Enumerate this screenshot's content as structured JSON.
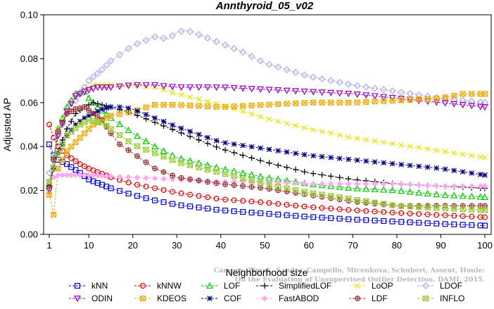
{
  "chart_data": {
    "type": "line",
    "title": "Annthyroid_05_v02",
    "xlabel": "Neighborhood size",
    "ylabel": "Adjusted AP",
    "xlim": [
      1,
      100
    ],
    "ylim": [
      0,
      0.1
    ],
    "x_ticks": [
      1,
      10,
      20,
      30,
      40,
      50,
      60,
      70,
      80,
      90,
      100
    ],
    "y_ticks": [
      0.0,
      0.02,
      0.04,
      0.06,
      0.08,
      0.1
    ],
    "y_tick_labels": [
      "0.00",
      "0.02",
      "0.04",
      "0.06",
      "0.08",
      "0.10"
    ],
    "grid": false,
    "legend_position": "bottom",
    "watermark": [
      "Campos, Zimek, Sander, Campello, Micenkova, Schubert, Assent, Houle:",
      "On the Evaluation of Unsupervised Outlier Detection. DAMI, 2015."
    ],
    "series": [
      {
        "name": "kNN",
        "color": "#0000dd",
        "marker": "square",
        "points": [
          [
            1,
            0.041
          ],
          [
            2,
            0.036
          ],
          [
            3,
            0.034
          ],
          [
            5,
            0.032
          ],
          [
            8,
            0.028
          ],
          [
            10,
            0.025
          ],
          [
            15,
            0.021
          ],
          [
            20,
            0.018
          ],
          [
            25,
            0.0155
          ],
          [
            30,
            0.0135
          ],
          [
            40,
            0.011
          ],
          [
            50,
            0.0095
          ],
          [
            60,
            0.008
          ],
          [
            70,
            0.0068
          ],
          [
            80,
            0.0058
          ],
          [
            90,
            0.0048
          ],
          [
            100,
            0.004
          ]
        ]
      },
      {
        "name": "kNNW",
        "color": "#dd0000",
        "marker": "circle",
        "points": [
          [
            1,
            0.05
          ],
          [
            2,
            0.044
          ],
          [
            3,
            0.04
          ],
          [
            5,
            0.036
          ],
          [
            8,
            0.032
          ],
          [
            10,
            0.03
          ],
          [
            15,
            0.026
          ],
          [
            20,
            0.023
          ],
          [
            25,
            0.021
          ],
          [
            30,
            0.019
          ],
          [
            40,
            0.016
          ],
          [
            50,
            0.0145
          ],
          [
            60,
            0.0125
          ],
          [
            70,
            0.011
          ],
          [
            80,
            0.0098
          ],
          [
            90,
            0.0088
          ],
          [
            100,
            0.0078
          ]
        ]
      },
      {
        "name": "LOF",
        "color": "#00cc00",
        "marker": "triangle-up",
        "points": [
          [
            1,
            0.023
          ],
          [
            2,
            0.035
          ],
          [
            3,
            0.048
          ],
          [
            5,
            0.058
          ],
          [
            7,
            0.064
          ],
          [
            9,
            0.065
          ],
          [
            10,
            0.062
          ],
          [
            12,
            0.058
          ],
          [
            15,
            0.053
          ],
          [
            20,
            0.046
          ],
          [
            25,
            0.04
          ],
          [
            30,
            0.035
          ],
          [
            40,
            0.03
          ],
          [
            50,
            0.026
          ],
          [
            60,
            0.023
          ],
          [
            70,
            0.021
          ],
          [
            80,
            0.02
          ],
          [
            90,
            0.018
          ],
          [
            100,
            0.017
          ]
        ]
      },
      {
        "name": "SimplifiedLOF",
        "color": "#000000",
        "marker": "plus",
        "points": [
          [
            1,
            0.022
          ],
          [
            2,
            0.03
          ],
          [
            3,
            0.038
          ],
          [
            5,
            0.048
          ],
          [
            7,
            0.055
          ],
          [
            9,
            0.058
          ],
          [
            11,
            0.06
          ],
          [
            13,
            0.059
          ],
          [
            15,
            0.058
          ],
          [
            20,
            0.055
          ],
          [
            25,
            0.051
          ],
          [
            30,
            0.047
          ],
          [
            40,
            0.039
          ],
          [
            50,
            0.033
          ],
          [
            60,
            0.028
          ],
          [
            70,
            0.025
          ],
          [
            80,
            0.023
          ],
          [
            90,
            0.022
          ],
          [
            100,
            0.021
          ]
        ]
      },
      {
        "name": "LoOP",
        "color": "#e6e600",
        "marker": "cross",
        "points": [
          [
            1,
            0.022
          ],
          [
            2,
            0.035
          ],
          [
            3,
            0.048
          ],
          [
            5,
            0.056
          ],
          [
            7,
            0.062
          ],
          [
            9,
            0.066
          ],
          [
            11,
            0.068
          ],
          [
            15,
            0.068
          ],
          [
            20,
            0.068
          ],
          [
            25,
            0.067
          ],
          [
            30,
            0.064
          ],
          [
            40,
            0.059
          ],
          [
            50,
            0.053
          ],
          [
            60,
            0.048
          ],
          [
            70,
            0.044
          ],
          [
            80,
            0.041
          ],
          [
            90,
            0.038
          ],
          [
            100,
            0.035
          ]
        ]
      },
      {
        "name": "LDOF",
        "color": "#aaaaee",
        "marker": "diamond",
        "points": [
          [
            1,
            0.028
          ],
          [
            2,
            0.036
          ],
          [
            3,
            0.045
          ],
          [
            5,
            0.055
          ],
          [
            8,
            0.064
          ],
          [
            10,
            0.07
          ],
          [
            13,
            0.075
          ],
          [
            15,
            0.079
          ],
          [
            20,
            0.086
          ],
          [
            25,
            0.09
          ],
          [
            28,
            0.089
          ],
          [
            30,
            0.092
          ],
          [
            32,
            0.093
          ],
          [
            35,
            0.091
          ],
          [
            40,
            0.087
          ],
          [
            45,
            0.083
          ],
          [
            50,
            0.078
          ],
          [
            55,
            0.075
          ],
          [
            60,
            0.072
          ],
          [
            65,
            0.07
          ],
          [
            70,
            0.068
          ],
          [
            80,
            0.065
          ],
          [
            90,
            0.062
          ],
          [
            100,
            0.06
          ]
        ]
      },
      {
        "name": "ODIN",
        "color": "#9900cc",
        "marker": "triangle-down",
        "points": [
          [
            1,
            0.02
          ],
          [
            2,
            0.03
          ],
          [
            3,
            0.045
          ],
          [
            5,
            0.056
          ],
          [
            7,
            0.063
          ],
          [
            9,
            0.065
          ],
          [
            12,
            0.067
          ],
          [
            15,
            0.067
          ],
          [
            20,
            0.068
          ],
          [
            25,
            0.068
          ],
          [
            30,
            0.067
          ],
          [
            40,
            0.067
          ],
          [
            50,
            0.066
          ],
          [
            60,
            0.065
          ],
          [
            70,
            0.064
          ],
          [
            80,
            0.062
          ],
          [
            90,
            0.06
          ],
          [
            100,
            0.058
          ]
        ]
      },
      {
        "name": "KDEOS",
        "color": "#eeaa00",
        "marker": "square-x",
        "points": [
          [
            1,
            0.018
          ],
          [
            2,
            0.009
          ],
          [
            3,
            0.03
          ],
          [
            5,
            0.038
          ],
          [
            7,
            0.042
          ],
          [
            9,
            0.046
          ],
          [
            11,
            0.05
          ],
          [
            13,
            0.052
          ],
          [
            15,
            0.054
          ],
          [
            20,
            0.056
          ],
          [
            25,
            0.059
          ],
          [
            30,
            0.059
          ],
          [
            40,
            0.058
          ],
          [
            50,
            0.059
          ],
          [
            60,
            0.06
          ],
          [
            70,
            0.06
          ],
          [
            80,
            0.061
          ],
          [
            90,
            0.062
          ],
          [
            95,
            0.064
          ],
          [
            100,
            0.064
          ]
        ]
      },
      {
        "name": "COF",
        "color": "#000088",
        "marker": "star",
        "points": [
          [
            1,
            0.023
          ],
          [
            2,
            0.03
          ],
          [
            3,
            0.037
          ],
          [
            5,
            0.045
          ],
          [
            7,
            0.05
          ],
          [
            9,
            0.053
          ],
          [
            11,
            0.055
          ],
          [
            13,
            0.057
          ],
          [
            15,
            0.058
          ],
          [
            18,
            0.058
          ],
          [
            20,
            0.057
          ],
          [
            25,
            0.053
          ],
          [
            30,
            0.049
          ],
          [
            40,
            0.042
          ],
          [
            50,
            0.039
          ],
          [
            60,
            0.036
          ],
          [
            70,
            0.034
          ],
          [
            80,
            0.032
          ],
          [
            90,
            0.03
          ],
          [
            100,
            0.027
          ]
        ]
      },
      {
        "name": "FastABOD",
        "color": "#ffaaee",
        "marker": "diamond-filled",
        "points": [
          [
            1,
            0.024
          ],
          [
            2,
            0.026
          ],
          [
            3,
            0.027
          ],
          [
            5,
            0.027
          ],
          [
            10,
            0.027
          ],
          [
            20,
            0.026
          ],
          [
            30,
            0.025
          ],
          [
            40,
            0.024
          ],
          [
            50,
            0.024
          ],
          [
            60,
            0.023
          ],
          [
            70,
            0.023
          ],
          [
            80,
            0.023
          ],
          [
            90,
            0.022
          ],
          [
            100,
            0.022
          ]
        ]
      },
      {
        "name": "LDF",
        "color": "#993333",
        "marker": "circle-plus",
        "points": [
          [
            1,
            0.021
          ],
          [
            2,
            0.034
          ],
          [
            3,
            0.047
          ],
          [
            5,
            0.055
          ],
          [
            7,
            0.057
          ],
          [
            9,
            0.058
          ],
          [
            11,
            0.055
          ],
          [
            13,
            0.052
          ],
          [
            15,
            0.046
          ],
          [
            17,
            0.041
          ],
          [
            20,
            0.037
          ],
          [
            25,
            0.03
          ],
          [
            30,
            0.026
          ],
          [
            40,
            0.023
          ],
          [
            50,
            0.021
          ],
          [
            60,
            0.018
          ],
          [
            70,
            0.015
          ],
          [
            80,
            0.013
          ],
          [
            90,
            0.013
          ],
          [
            100,
            0.013
          ]
        ]
      },
      {
        "name": "INFLO",
        "color": "#99cc33",
        "marker": "hourglass",
        "points": [
          [
            1,
            0.024
          ],
          [
            2,
            0.03
          ],
          [
            3,
            0.037
          ],
          [
            5,
            0.045
          ],
          [
            8,
            0.05
          ],
          [
            10,
            0.052
          ],
          [
            13,
            0.051
          ],
          [
            15,
            0.048
          ],
          [
            20,
            0.041
          ],
          [
            25,
            0.037
          ],
          [
            30,
            0.033
          ],
          [
            40,
            0.028
          ],
          [
            50,
            0.023
          ],
          [
            60,
            0.019
          ],
          [
            70,
            0.016
          ],
          [
            80,
            0.013
          ],
          [
            90,
            0.012
          ],
          [
            100,
            0.011
          ]
        ]
      }
    ]
  }
}
